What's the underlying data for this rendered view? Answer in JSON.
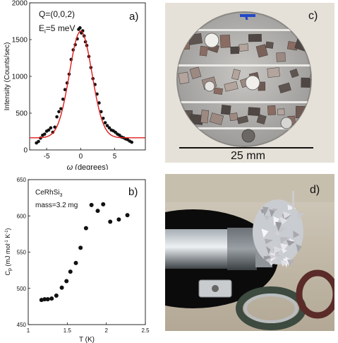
{
  "panel_a": {
    "label": "a)",
    "annot_q": "Q=(0,0,2)",
    "annot_e_main": "E",
    "annot_e_sub": "i",
    "annot_e_rest": "=5 meV",
    "xlabel_symbol": "ω",
    "xlabel_rest": " (degrees)",
    "ylabel": "Intensity (Counts/sec)",
    "x_ticks": [
      "-5",
      "0",
      "5"
    ],
    "y_ticks": [
      "0",
      "500",
      "1000",
      "1500",
      "2000"
    ],
    "fit_color": "#e01b1b",
    "point_color": "#111111"
  },
  "panel_b": {
    "label": "b)",
    "annot_compound_main": "CeRhSi",
    "annot_compound_sub": "3",
    "annot_mass": "mass=3.2 mg",
    "xlabel": "T (K)",
    "ylabel_c": "C",
    "ylabel_sub": "p",
    "ylabel_units": " (mJ mol",
    "ylabel_exp1": "-1",
    "ylabel_k": " K",
    "ylabel_exp2": "-1",
    "ylabel_close": ")",
    "x_ticks": [
      "1",
      "1.5",
      "2",
      "2.5"
    ],
    "y_ticks": [
      "450",
      "500",
      "550",
      "600",
      "650"
    ]
  },
  "panel_c": {
    "label": "c)",
    "scale_text": "25 mm"
  },
  "panel_d": {
    "label": "d)"
  },
  "chart_data": [
    {
      "type": "scatter",
      "panel": "a",
      "xlabel": "ω (degrees)",
      "ylabel": "Intensity (Counts/sec)",
      "xlim": [
        -7.5,
        9.5
      ],
      "ylim": [
        0,
        2000
      ],
      "grid": false,
      "series": [
        {
          "kind": "points",
          "x": [
            -6.5,
            -6.2,
            -5.9,
            -5.6,
            -5.3,
            -5.0,
            -4.7,
            -4.4,
            -4.1,
            -3.8,
            -3.5,
            -3.2,
            -2.9,
            -2.6,
            -2.3,
            -2.0,
            -1.7,
            -1.4,
            -1.1,
            -0.8,
            -0.5,
            -0.3,
            -0.1,
            0.1,
            0.3,
            0.5,
            0.7,
            0.9,
            1.2,
            1.5,
            1.8,
            2.1,
            2.4,
            2.7,
            3.0,
            3.3,
            3.6,
            3.9,
            4.2,
            4.5,
            4.8,
            5.1,
            5.4,
            5.7,
            6.0,
            6.3,
            6.6,
            6.9,
            7.2,
            7.5
          ],
          "y": [
            95,
            115,
            160,
            200,
            215,
            255,
            270,
            300,
            240,
            310,
            450,
            520,
            560,
            690,
            820,
            910,
            1030,
            1230,
            1360,
            1430,
            1510,
            1640,
            1660,
            1590,
            1620,
            1550,
            1470,
            1420,
            1270,
            1120,
            970,
            890,
            760,
            640,
            520,
            430,
            370,
            330,
            300,
            270,
            260,
            240,
            215,
            200,
            175,
            165,
            150,
            140,
            120,
            105
          ]
        },
        {
          "kind": "fit",
          "model": "gaussian",
          "amplitude": 1450,
          "center": 0.0,
          "sigma": 1.65,
          "background": 165
        }
      ]
    },
    {
      "type": "scatter",
      "panel": "b",
      "xlabel": "T (K)",
      "ylabel": "Cp (mJ mol-1 K-1)",
      "xlim": [
        1,
        2.5
      ],
      "ylim": [
        450,
        650
      ],
      "grid": false,
      "series": [
        {
          "kind": "points",
          "x": [
            1.17,
            1.21,
            1.25,
            1.3,
            1.36,
            1.43,
            1.49,
            1.54,
            1.61,
            1.67,
            1.74,
            1.81,
            1.89,
            1.96,
            2.05,
            2.16,
            2.27
          ],
          "y": [
            484,
            485,
            485,
            486,
            490,
            501,
            510,
            523,
            535,
            556,
            583,
            615,
            607,
            616,
            592,
            595,
            601
          ]
        }
      ]
    }
  ]
}
